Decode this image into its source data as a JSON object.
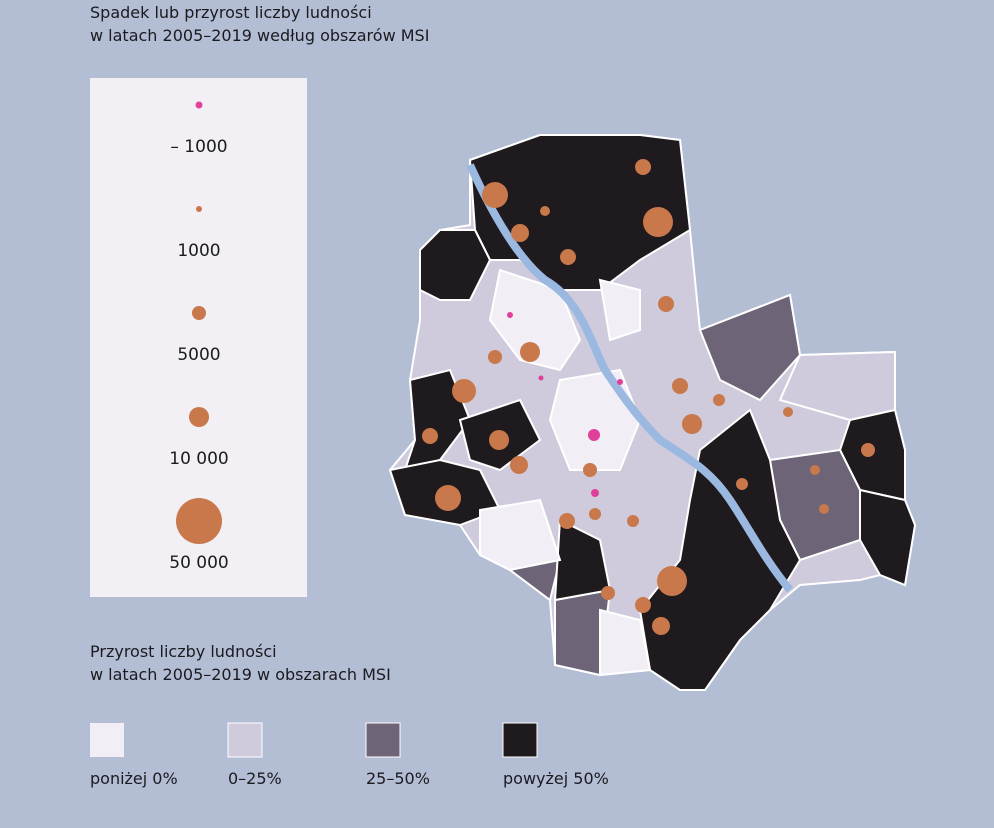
{
  "header": {
    "title_lines": [
      "Spadek lub przyrost liczby ludności",
      "w latach 2005–2019 według obszarów MSI"
    ]
  },
  "bubble_legend": {
    "labels": [
      "– 1000",
      "1000",
      "5000",
      "10 000",
      "50 000"
    ]
  },
  "color_legend": {
    "title_lines": [
      "Przyrost liczby ludności",
      "w latach 2005–2019 w obszarach MSI"
    ],
    "labels": [
      "poniżej 0%",
      "0–25%",
      "25–50%",
      "powyżej 50%"
    ]
  }
}
